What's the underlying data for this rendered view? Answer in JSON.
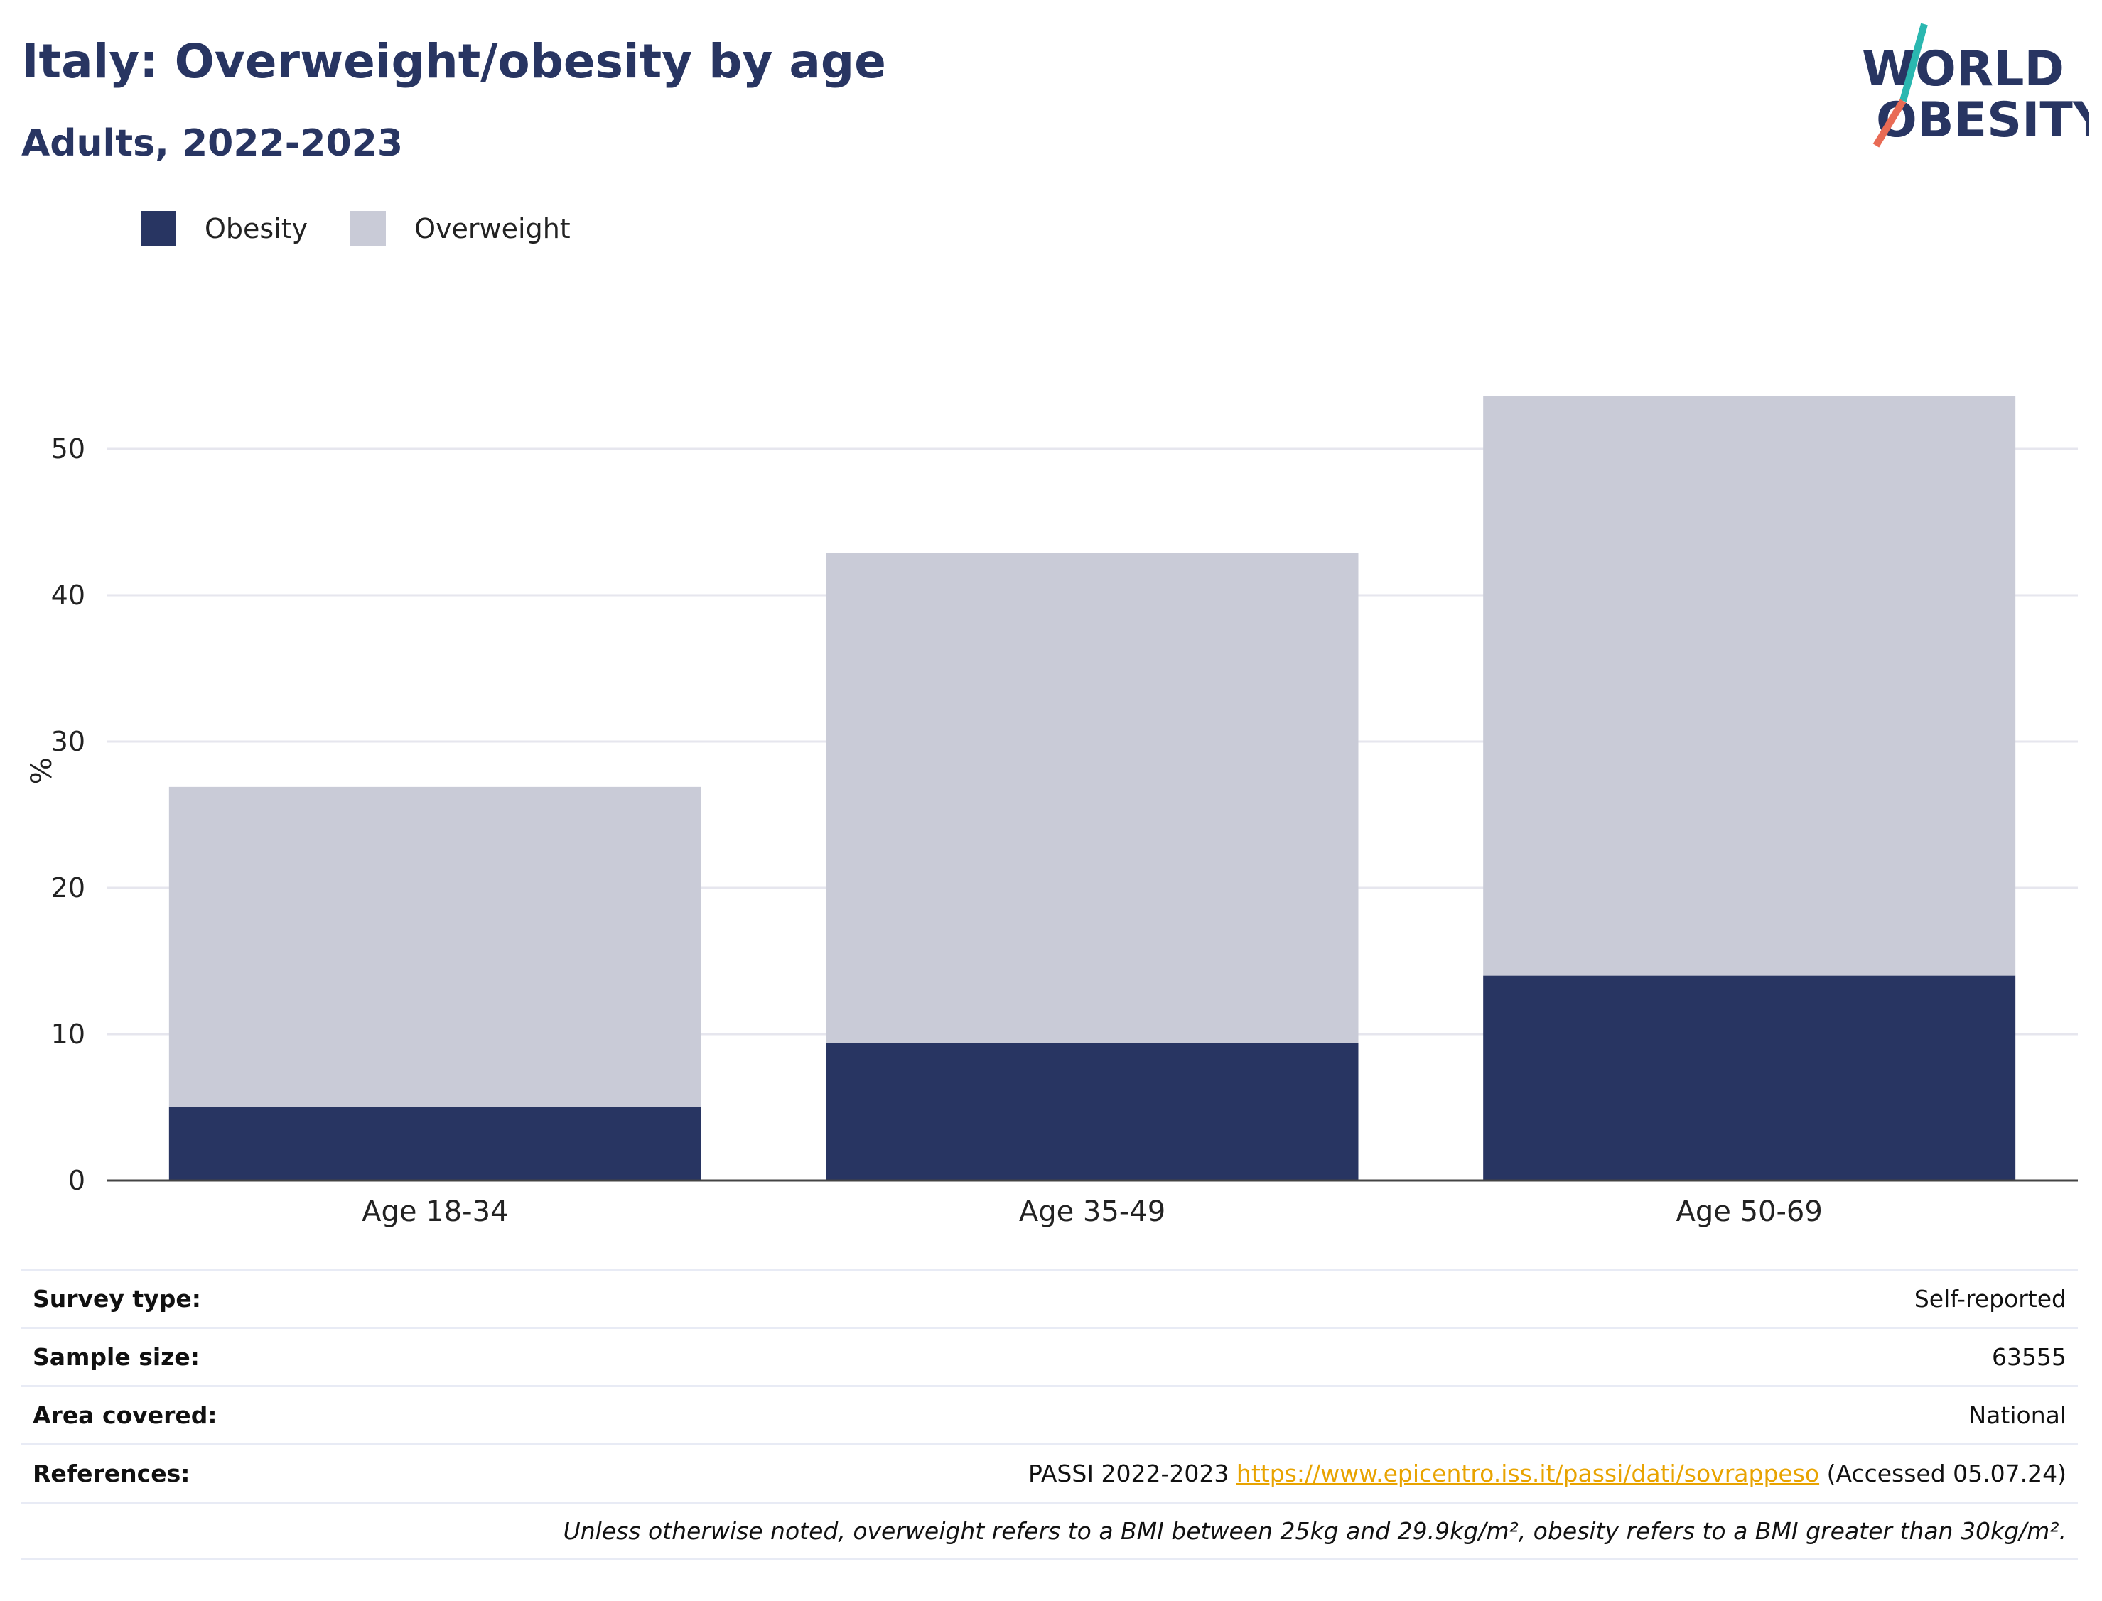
{
  "header": {
    "title": "Italy: Overweight/obesity by age",
    "subtitle": "Adults, 2022-2023"
  },
  "logo": {
    "line1": "WORLD",
    "line2": "OBESITY",
    "icon": "world-obesity-logo",
    "slash_colors": [
      "#2ab7b0",
      "#e96b55"
    ]
  },
  "colors": {
    "obesity": "#283562",
    "overweight": "#c9cbd7",
    "title": "#283562",
    "link": "#e8a300"
  },
  "chart_data": {
    "type": "bar",
    "stacked": true,
    "categories": [
      "Age 18-34",
      "Age 35-49",
      "Age 50-69"
    ],
    "series": [
      {
        "name": "Obesity",
        "values": [
          5.0,
          9.4,
          14.0
        ]
      },
      {
        "name": "Overweight",
        "values": [
          21.9,
          33.5,
          39.6
        ]
      }
    ],
    "ylabel": "%",
    "ylim": [
      0,
      56
    ],
    "yticks": [
      0,
      10,
      20,
      30,
      40,
      50
    ],
    "grid": true,
    "legend_position": "top-left"
  },
  "info": {
    "survey_type": {
      "label": "Survey type:",
      "value": "Self-reported"
    },
    "sample_size": {
      "label": "Sample size:",
      "value": "63555"
    },
    "area_covered": {
      "label": "Area covered:",
      "value": "National"
    },
    "references": {
      "label": "References:",
      "prefix": "PASSI 2022-2023",
      "link": "https://www.epicentro.iss.it/passi/dati/sovrappeso",
      "suffix": "(Accessed 05.07.24)"
    },
    "note": "Unless otherwise noted, overweight refers to a BMI between 25kg and 29.9kg/m², obesity refers to a BMI greater than 30kg/m²."
  }
}
